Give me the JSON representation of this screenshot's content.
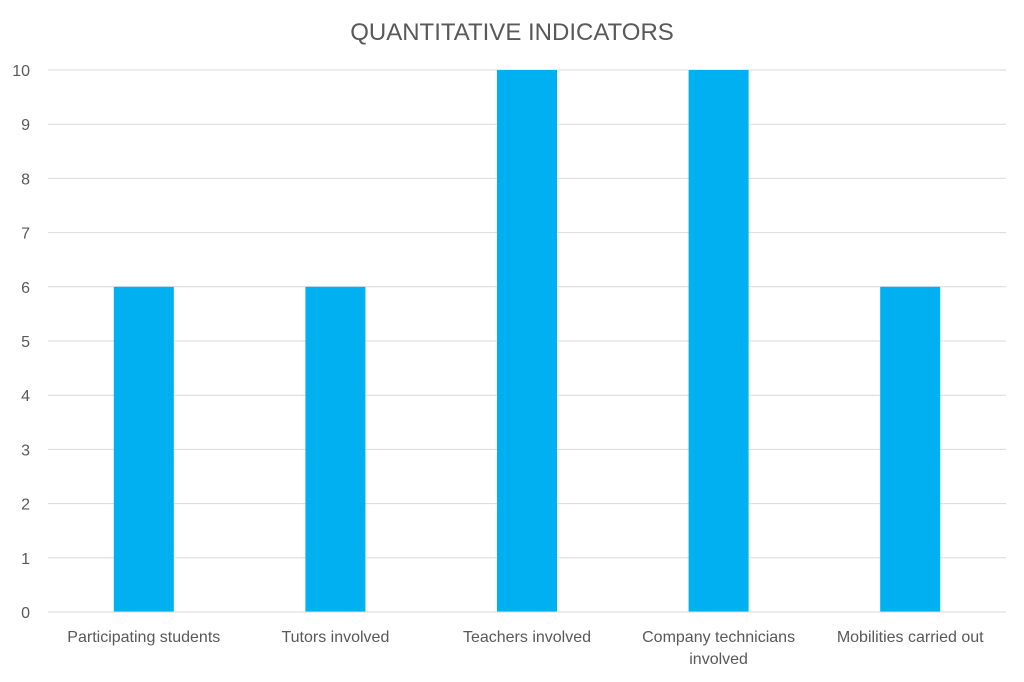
{
  "chart_data": {
    "type": "bar",
    "title": "QUANTITATIVE INDICATORS",
    "xlabel": "",
    "ylabel": "",
    "categories": [
      [
        "Participating students"
      ],
      [
        "Tutors involved"
      ],
      [
        "Teachers involved"
      ],
      [
        "Company technicians",
        "involved"
      ],
      [
        "Mobilities carried out"
      ]
    ],
    "values": [
      6,
      6,
      10,
      10,
      6
    ],
    "ylim": [
      0,
      10
    ],
    "yticks": [
      0,
      1,
      2,
      3,
      4,
      5,
      6,
      7,
      8,
      9,
      10
    ],
    "grid": true,
    "legend": "none",
    "bar_color": "#00B0F0"
  }
}
